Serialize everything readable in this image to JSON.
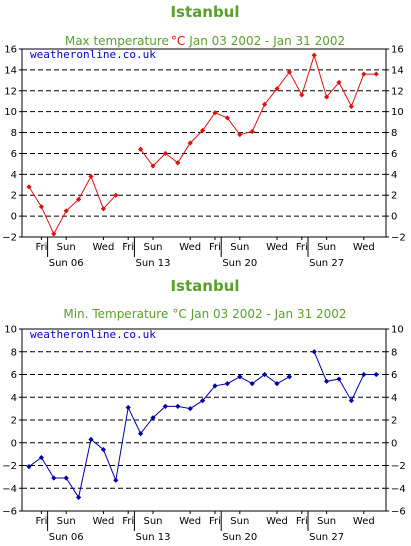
{
  "chart_data": [
    {
      "type": "line",
      "city": "Istanbul",
      "title_prefix": "Max temperature",
      "title_unit": "°C",
      "title_dates": "Jan 03 2002 - Jan 31 2002",
      "brand": "weatheronline.co.uk",
      "ylim": [
        -2,
        16
      ],
      "yticks": [
        -2,
        0,
        2,
        4,
        6,
        8,
        10,
        12,
        14,
        16
      ],
      "grid": true,
      "x_day_labels": [
        "Fri",
        "Sun",
        "Wed",
        "Fri",
        "Sun",
        "Wed",
        "Fri",
        "Sun",
        "Wed",
        "Fri",
        "Sun",
        "Wed"
      ],
      "x_week_labels": [
        "Sun 06",
        "Sun 13",
        "Sun 20",
        "Sun 27"
      ],
      "series": [
        {
          "color": "#dd1111",
          "values": [
            2.8,
            0.9,
            -1.7,
            0.5,
            1.6,
            3.8,
            0.7,
            2.0,
            null,
            6.4,
            4.8,
            6.0,
            5.1,
            7.0,
            8.2,
            9.9,
            9.4,
            7.8,
            8.1,
            10.7,
            12.2,
            13.8,
            11.6,
            15.4,
            11.4,
            12.8,
            10.5,
            13.6,
            13.6
          ]
        }
      ]
    },
    {
      "type": "line",
      "city": "Istanbul",
      "title_prefix": "Min. Temperature",
      "title_unit": "°C",
      "title_dates": "Jan 03 2002 - Jan 31 2002",
      "brand": "weatheronline.co.uk",
      "ylim": [
        -6,
        10
      ],
      "yticks": [
        -6,
        -4,
        -2,
        0,
        2,
        4,
        6,
        8,
        10
      ],
      "grid": true,
      "x_day_labels": [
        "Fri",
        "Sun",
        "Wed",
        "Fri",
        "Sun",
        "Wed",
        "Fri",
        "Sun",
        "Wed",
        "Fri",
        "Sun",
        "Wed"
      ],
      "x_week_labels": [
        "Sun 06",
        "Sun 13",
        "Sun 20",
        "Sun 27"
      ],
      "series": [
        {
          "color": "#0000aa",
          "values": [
            -2.1,
            -1.3,
            -3.1,
            -3.1,
            -4.8,
            0.3,
            -0.6,
            -3.3,
            3.1,
            0.8,
            2.2,
            3.2,
            3.2,
            3.0,
            3.7,
            5.0,
            5.2,
            5.8,
            5.2,
            6.0,
            5.2,
            5.8,
            null,
            8.0,
            5.4,
            5.6,
            3.7,
            6.0,
            6.0
          ]
        }
      ]
    }
  ]
}
